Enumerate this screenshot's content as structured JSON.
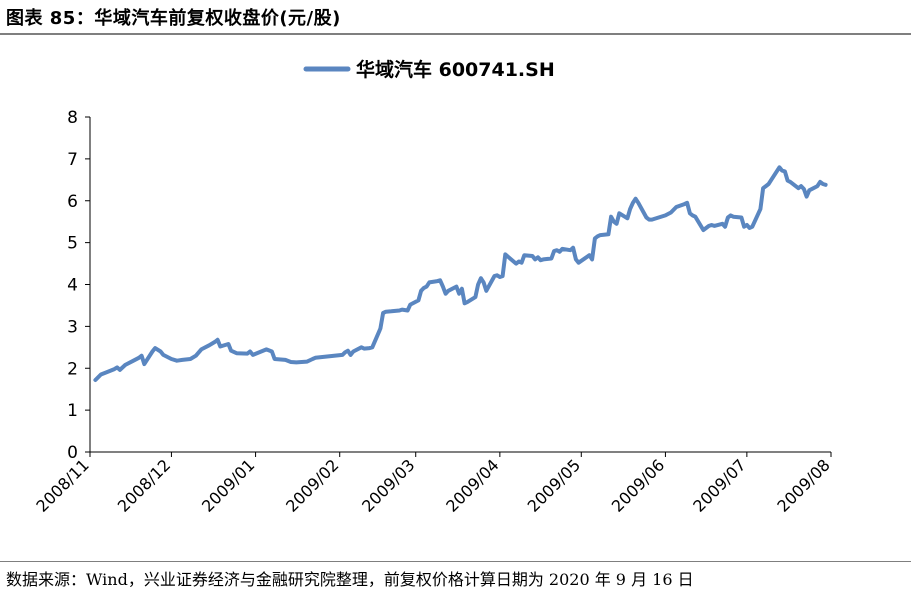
{
  "figure": {
    "title": "图表 85：华域汽车前复权收盘价(元/股)",
    "source": "数据来源：Wind，兴业证券经济与金融研究院整理，前复权价格计算日期为 2020 年 9 月 16 日"
  },
  "chart_data": {
    "type": "line",
    "title": "",
    "xlabel": "",
    "ylabel": "",
    "ylim": [
      0,
      8
    ],
    "yticks": [
      0,
      1,
      2,
      3,
      4,
      5,
      6,
      7,
      8
    ],
    "xticks": [
      "2008/11",
      "2008/12",
      "2009/01",
      "2009/02",
      "2009/03",
      "2009/04",
      "2009/05",
      "2009/06",
      "2009/07",
      "2009/08"
    ],
    "legend_position": "top-center",
    "grid": false,
    "series": [
      {
        "name": "华域汽车 600741.SH",
        "color": "#5A86C0",
        "points": [
          [
            "2008/11/03",
            1.72
          ],
          [
            "2008/11/05",
            1.85
          ],
          [
            "2008/11/07",
            1.9
          ],
          [
            "2008/11/10",
            1.98
          ],
          [
            "2008/11/11",
            2.02
          ],
          [
            "2008/11/12",
            1.96
          ],
          [
            "2008/11/14",
            2.08
          ],
          [
            "2008/11/17",
            2.18
          ],
          [
            "2008/11/19",
            2.25
          ],
          [
            "2008/11/20",
            2.3
          ],
          [
            "2008/11/21",
            2.1
          ],
          [
            "2008/11/24",
            2.4
          ],
          [
            "2008/11/25",
            2.48
          ],
          [
            "2008/11/27",
            2.4
          ],
          [
            "2008/11/28",
            2.32
          ],
          [
            "2008/12/01",
            2.22
          ],
          [
            "2008/12/03",
            2.18
          ],
          [
            "2008/12/05",
            2.2
          ],
          [
            "2008/12/08",
            2.22
          ],
          [
            "2008/12/10",
            2.3
          ],
          [
            "2008/12/12",
            2.45
          ],
          [
            "2008/12/15",
            2.55
          ],
          [
            "2008/12/17",
            2.63
          ],
          [
            "2008/12/18",
            2.68
          ],
          [
            "2008/12/19",
            2.52
          ],
          [
            "2008/12/22",
            2.58
          ],
          [
            "2008/12/23",
            2.42
          ],
          [
            "2008/12/25",
            2.36
          ],
          [
            "2008/12/29",
            2.35
          ],
          [
            "2008/12/30",
            2.4
          ],
          [
            "2008/12/31",
            2.32
          ],
          [
            "2009/01/05",
            2.45
          ],
          [
            "2009/01/07",
            2.4
          ],
          [
            "2009/01/08",
            2.22
          ],
          [
            "2009/01/12",
            2.2
          ],
          [
            "2009/01/14",
            2.15
          ],
          [
            "2009/01/16",
            2.14
          ],
          [
            "2009/01/20",
            2.16
          ],
          [
            "2009/01/22",
            2.22
          ],
          [
            "2009/01/23",
            2.25
          ],
          [
            "2009/02/02",
            2.32
          ],
          [
            "2009/02/03",
            2.38
          ],
          [
            "2009/02/04",
            2.42
          ],
          [
            "2009/02/05",
            2.32
          ],
          [
            "2009/02/06",
            2.4
          ],
          [
            "2009/02/09",
            2.5
          ],
          [
            "2009/02/10",
            2.47
          ],
          [
            "2009/02/12",
            2.48
          ],
          [
            "2009/02/13",
            2.5
          ],
          [
            "2009/02/16",
            2.95
          ],
          [
            "2009/02/17",
            3.32
          ],
          [
            "2009/02/18",
            3.35
          ],
          [
            "2009/02/20",
            3.36
          ],
          [
            "2009/02/23",
            3.38
          ],
          [
            "2009/02/24",
            3.4
          ],
          [
            "2009/02/26",
            3.38
          ],
          [
            "2009/02/27",
            3.52
          ],
          [
            "2009/03/02",
            3.62
          ],
          [
            "2009/03/03",
            3.85
          ],
          [
            "2009/03/04",
            3.92
          ],
          [
            "2009/03/05",
            3.95
          ],
          [
            "2009/03/06",
            4.05
          ],
          [
            "2009/03/09",
            4.08
          ],
          [
            "2009/03/10",
            4.1
          ],
          [
            "2009/03/11",
            3.95
          ],
          [
            "2009/03/12",
            3.78
          ],
          [
            "2009/03/13",
            3.85
          ],
          [
            "2009/03/16",
            3.95
          ],
          [
            "2009/03/17",
            3.78
          ],
          [
            "2009/03/18",
            3.9
          ],
          [
            "2009/03/19",
            3.55
          ],
          [
            "2009/03/20",
            3.58
          ],
          [
            "2009/03/23",
            3.7
          ],
          [
            "2009/03/24",
            4.0
          ],
          [
            "2009/03/25",
            4.15
          ],
          [
            "2009/03/26",
            4.05
          ],
          [
            "2009/03/27",
            3.85
          ],
          [
            "2009/03/30",
            4.2
          ],
          [
            "2009/03/31",
            4.22
          ],
          [
            "2009/04/01",
            4.18
          ],
          [
            "2009/04/02",
            4.2
          ],
          [
            "2009/04/03",
            4.72
          ],
          [
            "2009/04/07",
            4.5
          ],
          [
            "2009/04/08",
            4.55
          ],
          [
            "2009/04/09",
            4.52
          ],
          [
            "2009/04/10",
            4.7
          ],
          [
            "2009/04/13",
            4.68
          ],
          [
            "2009/04/14",
            4.6
          ],
          [
            "2009/04/15",
            4.65
          ],
          [
            "2009/04/16",
            4.58
          ],
          [
            "2009/04/17",
            4.6
          ],
          [
            "2009/04/20",
            4.62
          ],
          [
            "2009/04/21",
            4.8
          ],
          [
            "2009/04/22",
            4.82
          ],
          [
            "2009/04/23",
            4.78
          ],
          [
            "2009/04/24",
            4.85
          ],
          [
            "2009/04/27",
            4.82
          ],
          [
            "2009/04/28",
            4.88
          ],
          [
            "2009/04/29",
            4.6
          ],
          [
            "2009/04/30",
            4.52
          ],
          [
            "2009/05/04",
            4.7
          ],
          [
            "2009/05/05",
            4.6
          ],
          [
            "2009/05/06",
            5.1
          ],
          [
            "2009/05/07",
            5.15
          ],
          [
            "2009/05/08",
            5.18
          ],
          [
            "2009/05/11",
            5.2
          ],
          [
            "2009/05/12",
            5.62
          ],
          [
            "2009/05/13",
            5.5
          ],
          [
            "2009/05/14",
            5.45
          ],
          [
            "2009/05/15",
            5.7
          ],
          [
            "2009/05/18",
            5.58
          ],
          [
            "2009/05/19",
            5.8
          ],
          [
            "2009/05/20",
            5.95
          ],
          [
            "2009/05/21",
            6.05
          ],
          [
            "2009/05/22",
            5.95
          ],
          [
            "2009/05/25",
            5.6
          ],
          [
            "2009/05/26",
            5.55
          ],
          [
            "2009/05/27",
            5.55
          ],
          [
            "2009/06/01",
            5.65
          ],
          [
            "2009/06/03",
            5.72
          ],
          [
            "2009/06/05",
            5.85
          ],
          [
            "2009/06/08",
            5.92
          ],
          [
            "2009/06/09",
            5.95
          ],
          [
            "2009/06/10",
            5.7
          ],
          [
            "2009/06/11",
            5.65
          ],
          [
            "2009/06/12",
            5.62
          ],
          [
            "2009/06/15",
            5.3
          ],
          [
            "2009/06/16",
            5.35
          ],
          [
            "2009/06/17",
            5.4
          ],
          [
            "2009/06/18",
            5.42
          ],
          [
            "2009/06/19",
            5.4
          ],
          [
            "2009/06/22",
            5.45
          ],
          [
            "2009/06/23",
            5.38
          ],
          [
            "2009/06/24",
            5.6
          ],
          [
            "2009/06/25",
            5.65
          ],
          [
            "2009/06/26",
            5.62
          ],
          [
            "2009/06/29",
            5.6
          ],
          [
            "2009/06/30",
            5.38
          ],
          [
            "2009/07/01",
            5.42
          ],
          [
            "2009/07/02",
            5.35
          ],
          [
            "2009/07/03",
            5.38
          ],
          [
            "2009/07/06",
            5.8
          ],
          [
            "2009/07/07",
            6.3
          ],
          [
            "2009/07/08",
            6.35
          ],
          [
            "2009/07/09",
            6.4
          ],
          [
            "2009/07/10",
            6.5
          ],
          [
            "2009/07/13",
            6.8
          ],
          [
            "2009/07/14",
            6.72
          ],
          [
            "2009/07/15",
            6.7
          ],
          [
            "2009/07/16",
            6.48
          ],
          [
            "2009/07/17",
            6.45
          ],
          [
            "2009/07/20",
            6.3
          ],
          [
            "2009/07/21",
            6.35
          ],
          [
            "2009/07/22",
            6.28
          ],
          [
            "2009/07/23",
            6.1
          ],
          [
            "2009/07/24",
            6.25
          ],
          [
            "2009/07/27",
            6.35
          ],
          [
            "2009/07/28",
            6.45
          ],
          [
            "2009/07/29",
            6.4
          ],
          [
            "2009/07/30",
            6.38
          ]
        ]
      }
    ]
  }
}
